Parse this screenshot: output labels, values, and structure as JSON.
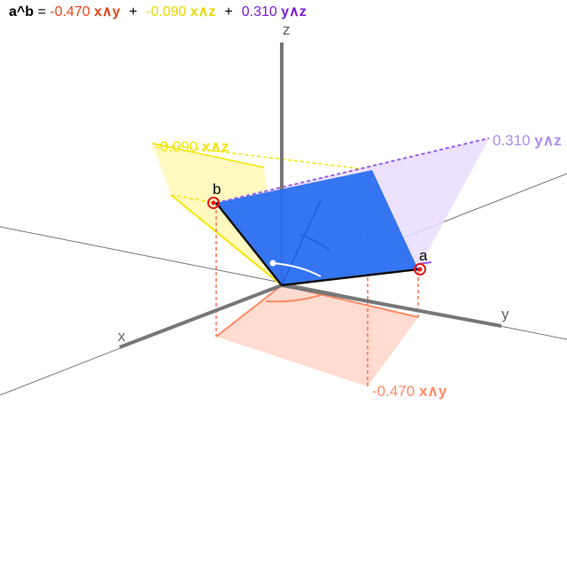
{
  "header": {
    "lhs": "a^b",
    "equals": " = ",
    "plus": "+",
    "terms": [
      {
        "coef": "-0.470",
        "blade": "x∧y",
        "color": "#e8481c"
      },
      {
        "coef": "-0.090",
        "blade": "x∧z",
        "color": "#e8d800"
      },
      {
        "coef": "0.310",
        "blade": "y∧z",
        "color": "#7a1fd6"
      }
    ]
  },
  "axes": {
    "x": "x",
    "y": "y",
    "z": "z"
  },
  "vectors": {
    "a": "a",
    "b": "b"
  },
  "projections": {
    "xy": {
      "coef": "-0.470",
      "blade": "x∧y"
    },
    "xz": {
      "coef": "-0.090",
      "blade": "x∧z"
    },
    "yz": {
      "coef": "0.310",
      "blade": "y∧z"
    }
  },
  "colors": {
    "bivector": "#2b6ff0",
    "xy_fill": "#ffd5c8",
    "xy_line": "#ff8a66",
    "xz_fill": "#fff7b0",
    "xz_line": "#f2e600",
    "yz_fill": "#e9dcff",
    "yz_line": "#9a5cf0",
    "handle": "#e21a1a"
  }
}
